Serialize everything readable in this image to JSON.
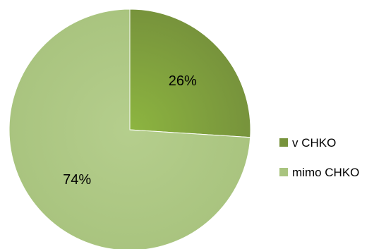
{
  "chart_data": {
    "type": "pie",
    "categories": [
      "v CHKO",
      "mimo CHKO"
    ],
    "values": [
      26,
      74
    ],
    "data_labels": [
      "26%",
      "74%"
    ],
    "colors": [
      "#77933C",
      "#A9C47F"
    ],
    "gradient_light": [
      "#8DB540",
      "#B5CE8D"
    ],
    "start_angle_deg": 0,
    "direction": "clockwise",
    "legend_position": "right"
  }
}
